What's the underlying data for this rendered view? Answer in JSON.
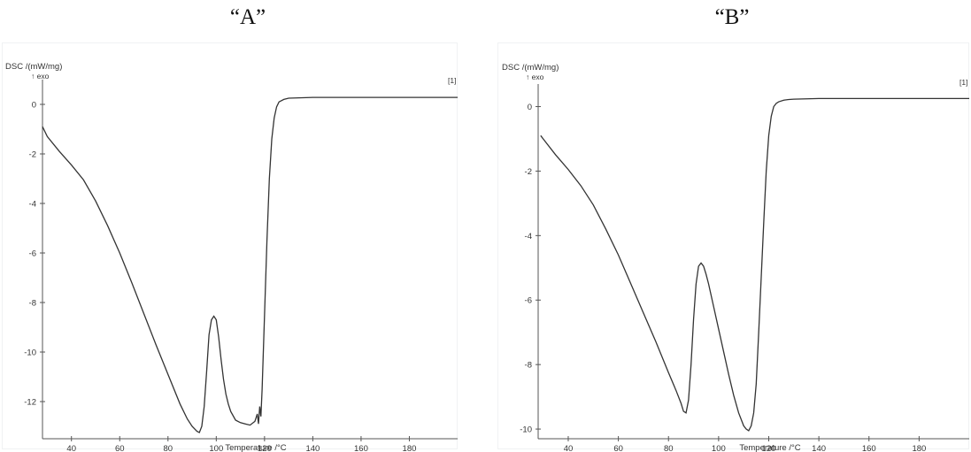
{
  "captions": {
    "a": "“A”",
    "b": "“B”"
  },
  "colors": {
    "curve": "#333333",
    "axis": "#555555",
    "background": "#ffffff"
  },
  "chart_data": [
    {
      "type": "line",
      "panel": "A",
      "ylabel": "DSC /(mW/mg)",
      "ylabel_sub": "↑ exo",
      "xlabel": "Temperature /°C",
      "corner_label": "[1]",
      "xlim": [
        28,
        200
      ],
      "ylim": [
        -13.5,
        1
      ],
      "xticks": [
        40,
        60,
        80,
        100,
        120,
        140,
        160,
        180
      ],
      "yticks": [
        0,
        -2,
        -4,
        -6,
        -8,
        -10,
        -12
      ],
      "legend": "none",
      "grid": false,
      "series": [
        {
          "x": [
            28,
            30,
            35,
            40,
            45,
            50,
            55,
            60,
            65,
            70,
            75,
            80,
            85,
            88,
            90,
            92,
            93,
            94,
            95,
            96,
            97,
            98,
            99,
            100,
            101,
            102,
            103,
            104,
            105,
            106,
            108,
            110,
            112,
            114,
            116,
            117,
            117.5,
            118,
            118.5,
            119,
            120,
            121,
            122,
            123,
            124,
            125,
            126,
            128,
            130,
            140,
            160,
            180,
            200
          ],
          "y": [
            -0.9,
            -1.3,
            -1.9,
            -2.45,
            -3.05,
            -3.9,
            -4.9,
            -6.0,
            -7.2,
            -8.45,
            -9.7,
            -10.9,
            -12.1,
            -12.7,
            -13.0,
            -13.2,
            -13.25,
            -13.0,
            -12.2,
            -10.8,
            -9.3,
            -8.7,
            -8.55,
            -8.7,
            -9.4,
            -10.3,
            -11.1,
            -11.7,
            -12.1,
            -12.4,
            -12.75,
            -12.85,
            -12.9,
            -12.95,
            -12.8,
            -12.5,
            -12.9,
            -12.2,
            -12.6,
            -11.5,
            -8.5,
            -5.5,
            -3.0,
            -1.4,
            -0.55,
            -0.1,
            0.1,
            0.2,
            0.25,
            0.28,
            0.28,
            0.28,
            0.28
          ]
        }
      ]
    },
    {
      "type": "line",
      "panel": "B",
      "ylabel": "DSC /(mW/mg)",
      "ylabel_sub": "↑ exo",
      "xlabel": "Temperature /°C",
      "corner_label": "[1]",
      "xlim": [
        28,
        200
      ],
      "ylim": [
        -10.3,
        0.7
      ],
      "xticks": [
        40,
        60,
        80,
        100,
        120,
        140,
        160,
        180
      ],
      "yticks": [
        0,
        -2,
        -4,
        -6,
        -8,
        -10
      ],
      "legend": "none",
      "grid": false,
      "series": [
        {
          "x": [
            29,
            30,
            35,
            40,
            45,
            50,
            55,
            60,
            65,
            70,
            75,
            80,
            83,
            85,
            86,
            87,
            88,
            89,
            90,
            91,
            92,
            93,
            94,
            95,
            96,
            97,
            98,
            100,
            102,
            104,
            106,
            108,
            110,
            111,
            112,
            113,
            114,
            115,
            116,
            117,
            118,
            119,
            120,
            121,
            122,
            123,
            124,
            126,
            128,
            130,
            140,
            160,
            180,
            200
          ],
          "y": [
            -0.9,
            -1.0,
            -1.5,
            -1.95,
            -2.45,
            -3.05,
            -3.8,
            -4.6,
            -5.5,
            -6.4,
            -7.3,
            -8.25,
            -8.8,
            -9.2,
            -9.45,
            -9.5,
            -9.1,
            -8.0,
            -6.6,
            -5.5,
            -4.95,
            -4.85,
            -4.95,
            -5.2,
            -5.5,
            -5.85,
            -6.2,
            -6.9,
            -7.6,
            -8.3,
            -8.95,
            -9.5,
            -9.9,
            -10.0,
            -10.05,
            -9.9,
            -9.5,
            -8.6,
            -7.0,
            -5.3,
            -3.6,
            -2.0,
            -0.9,
            -0.3,
            0.0,
            0.1,
            0.15,
            0.2,
            0.22,
            0.23,
            0.25,
            0.25,
            0.25,
            0.25
          ]
        }
      ]
    }
  ]
}
